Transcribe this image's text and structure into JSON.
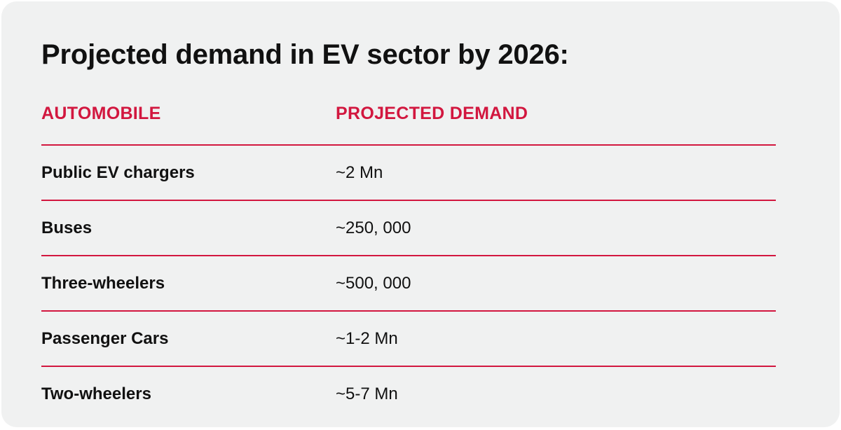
{
  "title": "Projected demand in EV sector by 2026:",
  "table": {
    "headers": {
      "automobile": "AUTOMOBILE",
      "projected_demand": "PROJECTED DEMAND"
    },
    "rows": [
      {
        "automobile": "Public EV chargers",
        "demand": "~2 Mn"
      },
      {
        "automobile": "Buses",
        "demand": "~250, 000"
      },
      {
        "automobile": "Three-wheelers",
        "demand": "~500, 000"
      },
      {
        "automobile": "Passenger Cars",
        "demand": "~1-2 Mn"
      },
      {
        "automobile": "Two-wheelers",
        "demand": "~5-7 Mn"
      }
    ]
  },
  "colors": {
    "accent": "#d2173f",
    "background": "#f0f1f1",
    "text": "#111111"
  }
}
